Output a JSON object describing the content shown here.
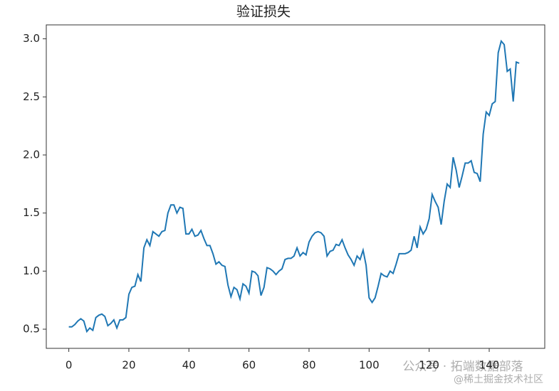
{
  "chart_data": {
    "type": "line",
    "title": "验证损失",
    "x": [
      0,
      1,
      2,
      3,
      4,
      5,
      6,
      7,
      8,
      9,
      10,
      11,
      12,
      13,
      14,
      15,
      16,
      17,
      18,
      19,
      20,
      21,
      22,
      23,
      24,
      25,
      26,
      27,
      28,
      29,
      30,
      31,
      32,
      33,
      34,
      35,
      36,
      37,
      38,
      39,
      40,
      41,
      42,
      43,
      44,
      45,
      46,
      47,
      48,
      49,
      50,
      51,
      52,
      53,
      54,
      55,
      56,
      57,
      58,
      59,
      60,
      61,
      62,
      63,
      64,
      65,
      66,
      67,
      68,
      69,
      70,
      71,
      72,
      73,
      74,
      75,
      76,
      77,
      78,
      79,
      80,
      81,
      82,
      83,
      84,
      85,
      86,
      87,
      88,
      89,
      90,
      91,
      92,
      93,
      94,
      95,
      96,
      97,
      98,
      99,
      100,
      101,
      102,
      103,
      104,
      105,
      106,
      107,
      108,
      109,
      110,
      111,
      112,
      113,
      114,
      115,
      116,
      117,
      118,
      119,
      120,
      121,
      122,
      123,
      124,
      125,
      126,
      127,
      128,
      129,
      130,
      131,
      132,
      133,
      134,
      135,
      136,
      137,
      138,
      139,
      140,
      141,
      142,
      143,
      144,
      145,
      146,
      147,
      148,
      149,
      150
    ],
    "series": [
      {
        "name": "验证损失",
        "color": "#1f77b4",
        "values": [
          0.52,
          0.52,
          0.54,
          0.57,
          0.59,
          0.57,
          0.48,
          0.51,
          0.49,
          0.6,
          0.62,
          0.63,
          0.61,
          0.53,
          0.55,
          0.58,
          0.51,
          0.58,
          0.58,
          0.6,
          0.8,
          0.86,
          0.87,
          0.97,
          0.91,
          1.2,
          1.27,
          1.22,
          1.34,
          1.32,
          1.3,
          1.34,
          1.35,
          1.5,
          1.57,
          1.57,
          1.5,
          1.55,
          1.54,
          1.32,
          1.32,
          1.36,
          1.3,
          1.31,
          1.35,
          1.28,
          1.22,
          1.22,
          1.15,
          1.06,
          1.08,
          1.05,
          1.04,
          0.88,
          0.78,
          0.86,
          0.84,
          0.76,
          0.89,
          0.87,
          0.81,
          1.0,
          0.99,
          0.96,
          0.79,
          0.86,
          1.03,
          1.02,
          1.0,
          0.97,
          1.0,
          1.02,
          1.1,
          1.11,
          1.11,
          1.13,
          1.2,
          1.13,
          1.16,
          1.14,
          1.25,
          1.3,
          1.33,
          1.34,
          1.33,
          1.3,
          1.13,
          1.17,
          1.18,
          1.23,
          1.22,
          1.27,
          1.2,
          1.14,
          1.1,
          1.05,
          1.13,
          1.1,
          1.18,
          1.05,
          0.77,
          0.73,
          0.77,
          0.87,
          0.98,
          0.96,
          0.95,
          1.0,
          0.98,
          1.06,
          1.15,
          1.15,
          1.15,
          1.16,
          1.18,
          1.3,
          1.2,
          1.38,
          1.32,
          1.36,
          1.45,
          1.66,
          1.6,
          1.55,
          1.4,
          1.6,
          1.75,
          1.72,
          1.98,
          1.87,
          1.72,
          1.82,
          1.93,
          1.93,
          1.95,
          1.85,
          1.84,
          1.77,
          2.18,
          2.37,
          2.34,
          2.44,
          2.46,
          2.88,
          2.98,
          2.95,
          2.72,
          2.74,
          2.46,
          2.8,
          2.79
        ]
      }
    ],
    "xlim": [
      -7.5,
      158.5
    ],
    "ylim": [
      0.335,
      3.12
    ],
    "xticks": [
      0,
      20,
      40,
      60,
      80,
      100,
      120,
      140
    ],
    "yticks": [
      {
        "value": 0.5,
        "label": "0.5"
      },
      {
        "value": 1,
        "label": "1.0"
      },
      {
        "value": 1.5,
        "label": "1.5"
      },
      {
        "value": 2,
        "label": "2.0"
      },
      {
        "value": 2.5,
        "label": "2.5"
      },
      {
        "value": 3,
        "label": "3.0"
      }
    ],
    "grid": false
  },
  "watermark": [
    "公众号 · 拓端数据部落",
    "@稀土掘金技术社区"
  ]
}
